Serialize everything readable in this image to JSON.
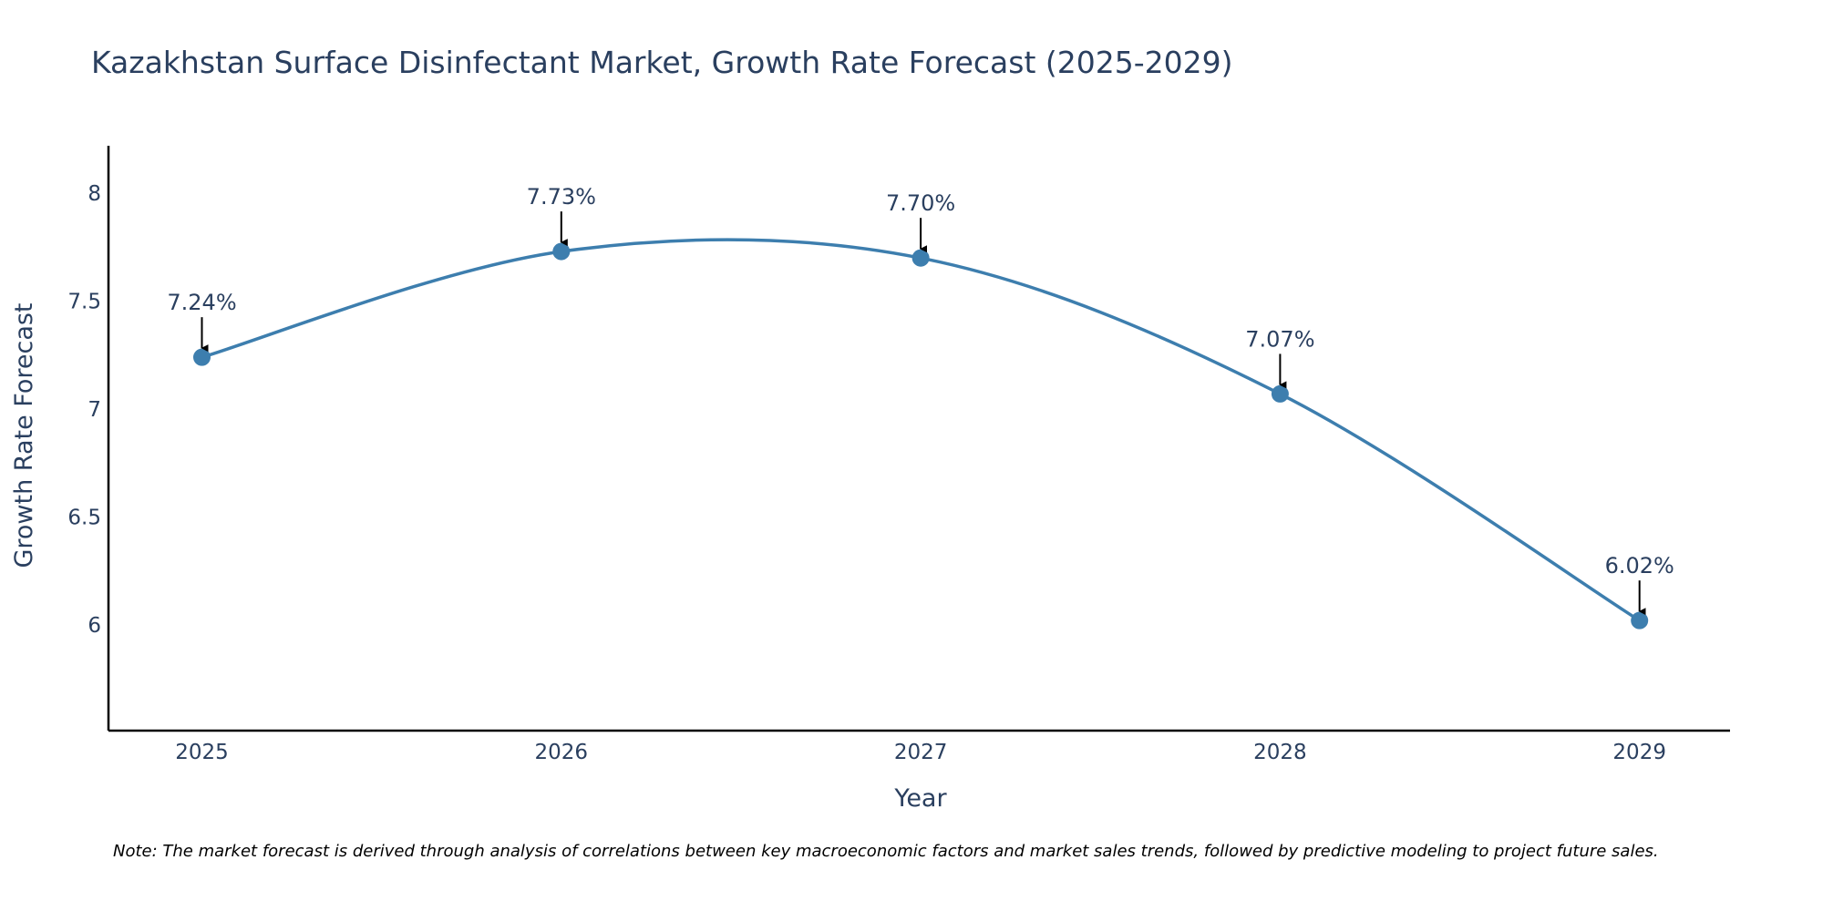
{
  "chart_data": {
    "type": "line",
    "title": "Kazakhstan Surface Disinfectant Market, Growth Rate Forecast (2025-2029)",
    "xlabel": "Year",
    "ylabel": "Growth Rate Forecast",
    "categories": [
      "2025",
      "2026",
      "2027",
      "2028",
      "2029"
    ],
    "series": [
      {
        "name": "Growth Rate Forecast",
        "values": [
          7.24,
          7.73,
          7.7,
          7.07,
          6.02
        ],
        "labels": [
          "7.24%",
          "7.73%",
          "7.70%",
          "7.07%",
          "6.02%"
        ]
      }
    ],
    "ylim": [
      5.51,
      8.22
    ],
    "yticks": [
      6,
      6.5,
      7,
      7.5,
      8
    ],
    "ytick_labels": [
      "6",
      "6.5",
      "7",
      "7.5",
      "8"
    ],
    "grid": false,
    "line_shape": "spline",
    "line_color": "#3d7eae",
    "marker_color": "#3d7eae",
    "annotation_arrow_color": "#000000",
    "note": "Note: The market forecast is derived through analysis of correlations between key macroeconomic factors and market sales trends, followed by predictive modeling to project future sales."
  }
}
